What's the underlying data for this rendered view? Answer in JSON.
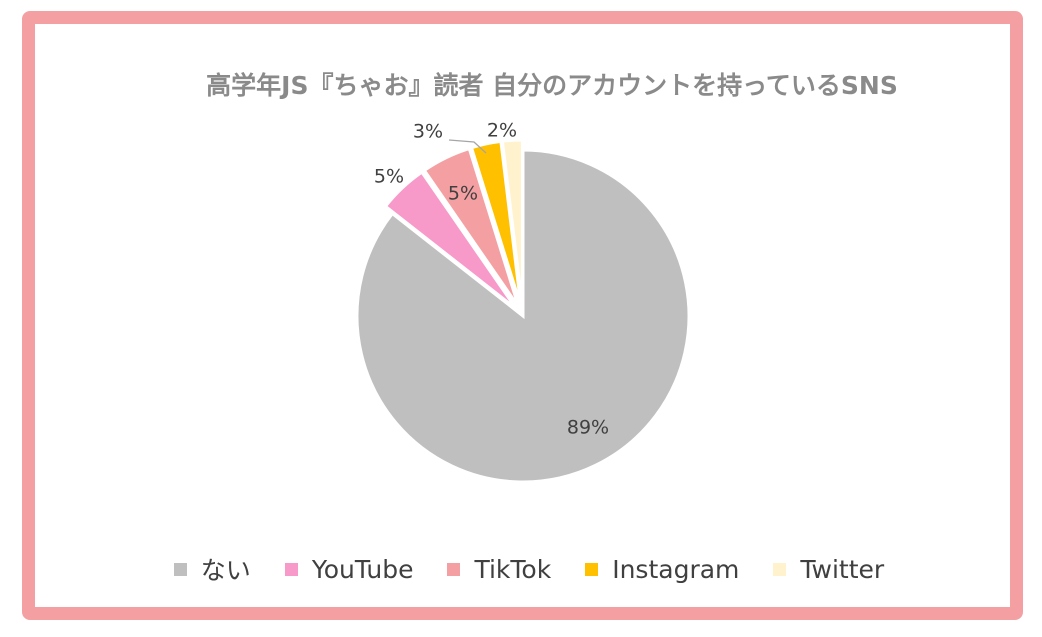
{
  "chart_data": {
    "type": "pie",
    "title": "高学年JS『ちゃお』読者 自分のアカウントを持っているSNS",
    "categories": [
      "ない",
      "YouTube",
      "TikTok",
      "Instagram",
      "Twitter"
    ],
    "values": [
      89,
      5,
      5,
      3,
      2
    ],
    "data_labels": [
      "89%",
      "5%",
      "5%",
      "3%",
      "2%"
    ],
    "colors": [
      "#bfbfbf",
      "#f799c9",
      "#f4a0a2",
      "#ffc000",
      "#fff2cc"
    ],
    "legend_position": "bottom",
    "start_angle": "12 o'clock, counter-clockwise from the largest slice"
  }
}
